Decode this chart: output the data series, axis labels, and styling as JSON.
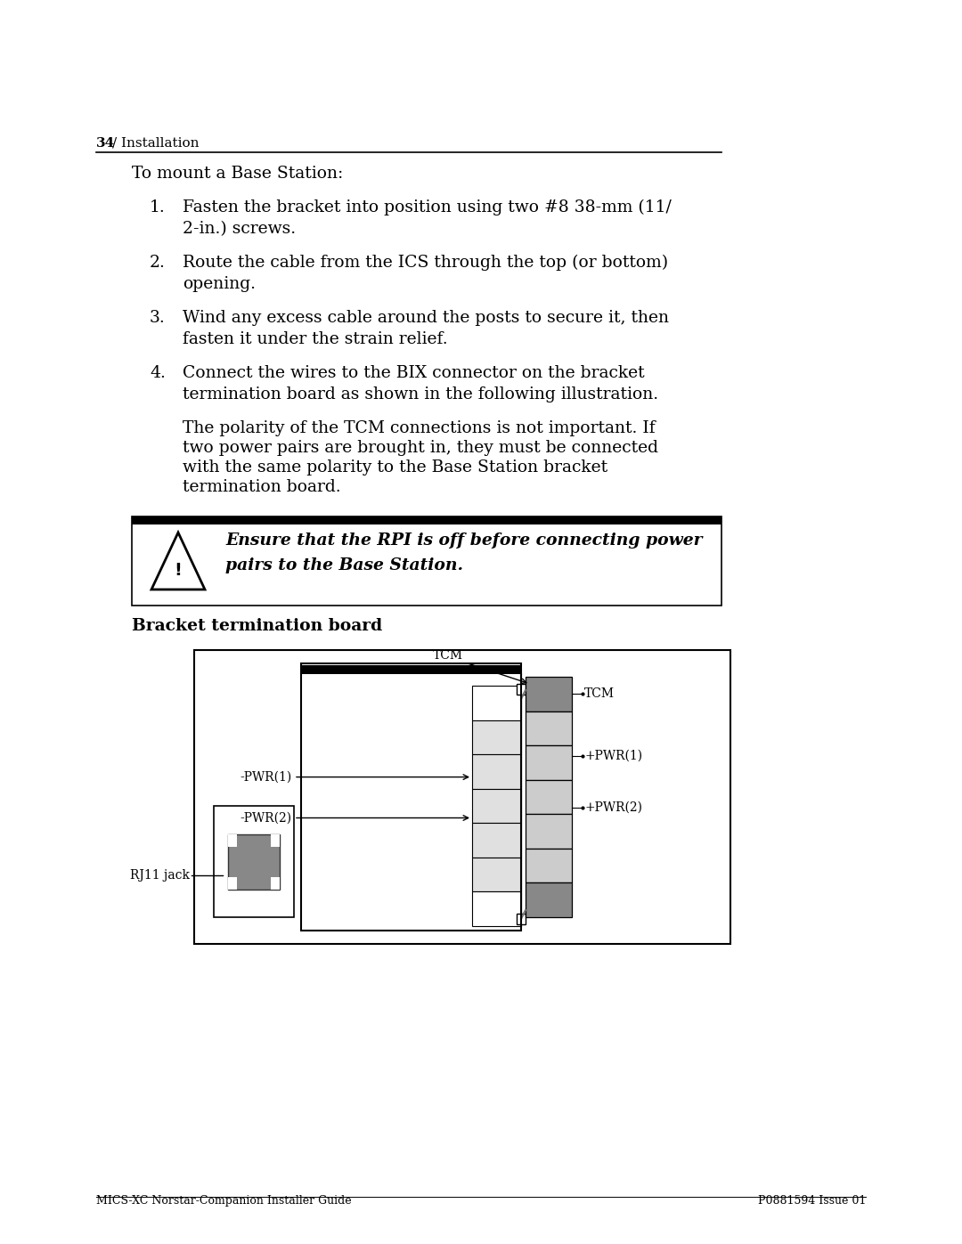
{
  "page_number": "34",
  "header_text": "/ Installation",
  "footer_left": "MICS-XC Norstar-Companion Installer Guide",
  "footer_right": "P0881594 Issue 01",
  "intro_text": "To mount a Base Station:",
  "step1_num": "1.",
  "step1_line1": "Fasten the bracket into position using two #8 38-mm (11/",
  "step1_line2": "2-in.) screws.",
  "step2_num": "2.",
  "step2_line1": "Route the cable from the ICS through the top (or bottom)",
  "step2_line2": "opening.",
  "step3_num": "3.",
  "step3_line1": "Wind any excess cable around the posts to secure it, then",
  "step3_line2": "fasten it under the strain relief.",
  "step4_num": "4.",
  "step4_line1": "Connect the wires to the BIX connector on the bracket",
  "step4_line2": "termination board as shown in the following illustration.",
  "para_line1": "The polarity of the TCM connections is not important. If",
  "para_line2": "two power pairs are brought in, they must be connected",
  "para_line3": "with the same polarity to the Base Station bracket",
  "para_line4": "termination board.",
  "warn_line1": "Ensure that the RPI is off before connecting power",
  "warn_line2": "pairs to the Base Station.",
  "diagram_title": "Bracket termination board",
  "lbl_TCM_left": "TCM",
  "lbl_PWR1_left": "-PWR(1)",
  "lbl_PWR2_left": "-PWR(2)",
  "lbl_TCM_right": "TCM",
  "lbl_PWR1_right": "+PWR(1)",
  "lbl_PWR2_right": "+PWR(2)",
  "lbl_RJ11": "RJ11 jack",
  "bg_color": "#ffffff",
  "text_color": "#000000"
}
